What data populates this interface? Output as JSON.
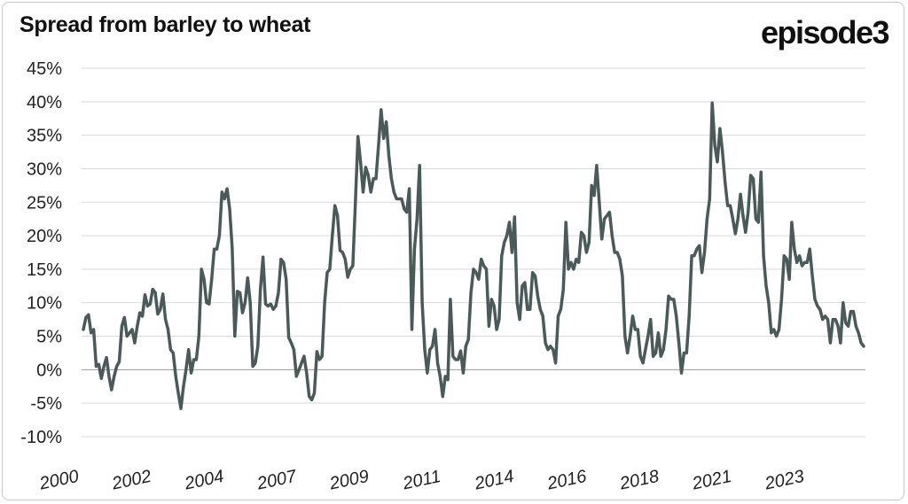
{
  "brand": "episode3",
  "chart_data": {
    "type": "line",
    "title": "Spread from barley to wheat",
    "xlabel": "",
    "ylabel": "",
    "ylim": [
      -10,
      45
    ],
    "y_ticks": [
      -10,
      -5,
      0,
      5,
      10,
      15,
      20,
      25,
      30,
      35,
      40,
      45
    ],
    "y_tick_labels": [
      "-10%",
      "-5%",
      "0%",
      "5%",
      "10%",
      "15%",
      "20%",
      "25%",
      "30%",
      "35%",
      "40%",
      "45%"
    ],
    "x_tick_labels": [
      "2000",
      "2002",
      "2004",
      "2007",
      "2009",
      "2011",
      "2014",
      "2016",
      "2018",
      "2021",
      "2023"
    ],
    "grid": "horizontal",
    "series_color": "#4a5a58",
    "series": [
      {
        "values": [
          6,
          7.8,
          8.2,
          5.5,
          6,
          0.5,
          0.8,
          -1.3,
          0.5,
          1.8,
          -1,
          -3,
          -1,
          0.5,
          1.2,
          6.5,
          7.8,
          5,
          5.5,
          6,
          4,
          6.5,
          8.5,
          8,
          11.2,
          9.5,
          9.8,
          12,
          11.5,
          8.3,
          9,
          11.3,
          7.5,
          6,
          3,
          2.5,
          -1,
          -3.5,
          -5.8,
          -2.5,
          0,
          3,
          -0.5,
          1.5,
          1.5,
          5,
          15,
          13.5,
          10,
          9.8,
          13.5,
          18,
          18,
          20,
          26.5,
          25.5,
          27,
          24,
          18,
          5,
          11.7,
          11.5,
          8.5,
          10,
          13.7,
          10,
          0.5,
          1,
          3.5,
          12,
          16.8,
          9.8,
          9.5,
          9.8,
          9,
          9.5,
          11.5,
          16.5,
          16,
          13.5,
          4.8,
          4,
          3,
          -1,
          0,
          1,
          2,
          -0.5,
          -4,
          -4.5,
          -3.5,
          2.7,
          1.5,
          2,
          10,
          14.5,
          15,
          20,
          24.5,
          23,
          17.8,
          17.5,
          16.5,
          13.8,
          15,
          15.5,
          25,
          34.8,
          31,
          26.5,
          30.2,
          29,
          26.5,
          28.5,
          28.5,
          33.5,
          38.8,
          34.5,
          37,
          32,
          28.5,
          26.5,
          25.5,
          25.5,
          25.5,
          24,
          23.5,
          27,
          6,
          18,
          22.5,
          30.5,
          10,
          3,
          -0.5,
          3,
          3.5,
          6,
          1,
          -1,
          -4,
          -1,
          -1.5,
          10.5,
          2,
          1.5,
          1.5,
          2.8,
          -0.5,
          3.5,
          4.5,
          11.5,
          15,
          14.5,
          13.5,
          16.5,
          15.5,
          15,
          6.5,
          10.5,
          9.5,
          6,
          7.5,
          17,
          19,
          20,
          22,
          17.5,
          22.8,
          10,
          7.5,
          12.5,
          13,
          9,
          9,
          14.5,
          14,
          11,
          9,
          8,
          4,
          3,
          3.5,
          3,
          1,
          8,
          9,
          12,
          22,
          15,
          16,
          15,
          16.5,
          16,
          20.5,
          20,
          17.5,
          19,
          27.5,
          26,
          30.5,
          25,
          19.5,
          22.5,
          23,
          23.5,
          20,
          17.5,
          17.5,
          16.5,
          14,
          5,
          2.5,
          5,
          8,
          6,
          6,
          2,
          1,
          3,
          5,
          7.5,
          2,
          2.5,
          5.5,
          2,
          3,
          6,
          11,
          10.5,
          10.5,
          8,
          4,
          -0.5,
          2.5,
          2.5,
          8,
          17,
          17,
          18,
          18.5,
          14.5,
          17.5,
          22.5,
          25.5,
          39.8,
          33.5,
          31,
          36,
          32.5,
          28,
          24.5,
          24.5,
          22.5,
          20.3,
          22.5,
          26.2,
          23,
          20.5,
          23.5,
          29,
          28.5,
          22.5,
          22,
          29.5,
          17,
          12.5,
          10,
          5.5,
          6,
          5,
          6,
          10.5,
          17,
          16.5,
          13.5,
          22,
          18,
          16,
          17,
          15.5,
          16,
          16,
          18,
          14,
          10.5,
          9.5,
          9,
          7.5,
          8,
          7.5,
          4,
          7.5,
          7.5,
          6.5,
          4,
          10,
          7,
          6.5,
          8.7,
          8.7,
          6.5,
          5.5,
          4,
          3.5
        ]
      }
    ]
  }
}
